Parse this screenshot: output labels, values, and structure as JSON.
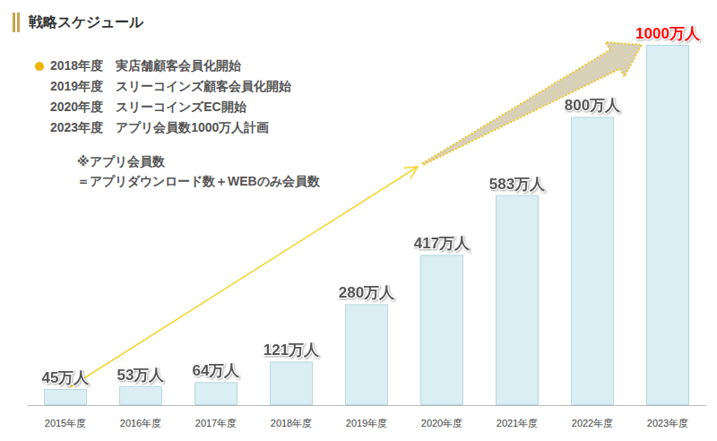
{
  "chart_data": {
    "type": "bar",
    "title": "戦略スケジュール",
    "annotations": [
      "2018年度　実店舗顧客会員化開始",
      "2019年度　スリーコインズ顧客会員化開始",
      "2020年度　スリーコインズEC開始",
      "2023年度　アプリ会員数1000万人計画",
      "※アプリ会員数",
      "＝アプリダウンロード数＋WEBのみ会員数"
    ],
    "categories": [
      "2015年度",
      "2016年度",
      "2017年度",
      "2018年度",
      "2019年度",
      "2020年度",
      "2021年度",
      "2022年度",
      "2023年度"
    ],
    "values": [
      45,
      53,
      64,
      121,
      280,
      417,
      583,
      800,
      1000
    ],
    "value_labels": [
      "45万人",
      "53万人",
      "64万人",
      "121万人",
      "280万人",
      "417万人",
      "583万人",
      "800万人",
      "1000万人"
    ],
    "color": "#daeef3",
    "ylim": [
      0,
      1000
    ],
    "data_labels": true,
    "tick_labels": "x",
    "grid": false
  }
}
